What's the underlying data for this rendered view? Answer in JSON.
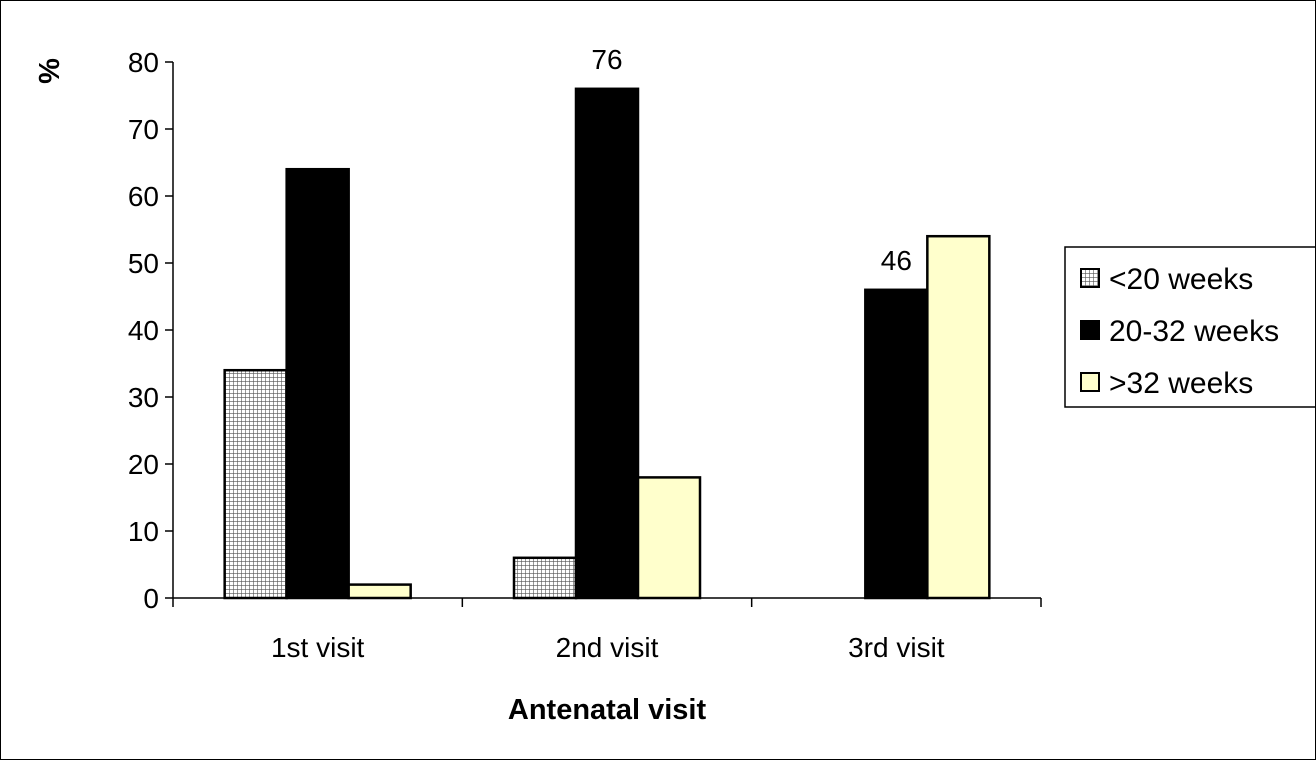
{
  "chart_data": {
    "type": "bar",
    "title": "",
    "xlabel": "Antenatal visit",
    "ylabel": "%",
    "ylim": [
      0,
      80
    ],
    "yticks": [
      0,
      10,
      20,
      30,
      40,
      50,
      60,
      70,
      80
    ],
    "grid": false,
    "legend_position": "right",
    "categories": [
      "1st visit",
      "2nd visit",
      "3rd visit"
    ],
    "series": [
      {
        "name": "<20 weeks",
        "values": [
          34,
          6,
          null
        ],
        "color": "#d8d8d8",
        "pattern": "grid"
      },
      {
        "name": "20-32 weeks",
        "values": [
          64,
          76,
          46
        ],
        "color": "#000000",
        "pattern": "solid"
      },
      {
        "name": ">32 weeks",
        "values": [
          2,
          18,
          54
        ],
        "color": "#ffffcc",
        "pattern": "solid"
      }
    ],
    "data_labels": [
      {
        "series": 1,
        "category": 1,
        "text": "76"
      },
      {
        "series": 1,
        "category": 2,
        "text": "46"
      }
    ]
  }
}
